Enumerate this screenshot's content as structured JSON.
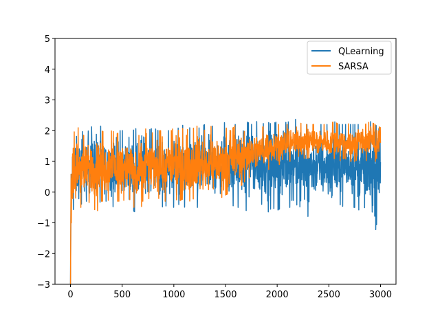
{
  "chart_data": {
    "type": "line",
    "title": "",
    "xlabel": "",
    "ylabel": "",
    "xlim": [
      -150,
      3150
    ],
    "ylim": [
      -3,
      5
    ],
    "xticks": [
      0,
      500,
      1000,
      1500,
      2000,
      2500,
      3000
    ],
    "xtick_labels": [
      "0",
      "500",
      "1000",
      "1500",
      "2000",
      "2500",
      "3000"
    ],
    "yticks": [
      -3,
      -2,
      -1,
      0,
      1,
      2,
      3,
      4,
      5
    ],
    "ytick_labels": [
      "−3",
      "−2",
      "−1",
      "0",
      "1",
      "2",
      "3",
      "4",
      "5"
    ],
    "grid": false,
    "legend_position": "upper right",
    "x_envelope": [
      0,
      10,
      30,
      60,
      100,
      150,
      200,
      250,
      300,
      350,
      400,
      450,
      500,
      550,
      600,
      650,
      700,
      750,
      800,
      850,
      900,
      950,
      1000,
      1050,
      1100,
      1150,
      1200,
      1250,
      1300,
      1350,
      1400,
      1450,
      1500,
      1550,
      1600,
      1650,
      1700,
      1750,
      1800,
      1850,
      1900,
      1950,
      2000,
      2050,
      2100,
      2150,
      2200,
      2250,
      2300,
      2350,
      2400,
      2450,
      2500,
      2550,
      2600,
      2650,
      2700,
      2750,
      2800,
      2850,
      2900,
      2950,
      3000
    ],
    "series": [
      {
        "name": "QLearning",
        "color": "#1f77b4",
        "note": "noisy per-episode values; min/max envelope estimated per ~50-episode window",
        "max": [
          0.7,
          1.9,
          1.9,
          2.2,
          2.0,
          1.9,
          2.1,
          2.4,
          2.1,
          2.0,
          2.1,
          2.0,
          2.0,
          2.1,
          2.0,
          2.1,
          2.4,
          2.0,
          2.1,
          2.0,
          2.1,
          2.0,
          2.0,
          2.1,
          2.2,
          2.1,
          2.0,
          2.1,
          2.2,
          2.1,
          2.2,
          2.1,
          2.3,
          2.2,
          2.2,
          2.5,
          2.3,
          2.2,
          2.3,
          2.2,
          2.3,
          2.2,
          2.3,
          2.2,
          2.3,
          2.2,
          2.5,
          2.2,
          2.2,
          2.3,
          2.2,
          2.2,
          2.2,
          2.3,
          2.2,
          2.2,
          2.2,
          2.2,
          2.2,
          2.2,
          2.3,
          2.2,
          2.0
        ],
        "min": [
          -3.0,
          -1.2,
          -0.5,
          -0.7,
          -0.4,
          -0.3,
          -0.3,
          -0.4,
          -0.3,
          -0.3,
          -0.5,
          -0.4,
          -0.5,
          -0.3,
          -0.6,
          -0.7,
          -0.4,
          -0.3,
          -0.5,
          -0.4,
          -0.5,
          -0.4,
          -0.5,
          -0.4,
          -0.5,
          -0.4,
          -0.5,
          -0.5,
          -0.4,
          -0.4,
          -0.5,
          -0.4,
          -0.5,
          -0.4,
          -0.5,
          -0.5,
          -0.6,
          -0.3,
          -0.5,
          -0.4,
          -0.7,
          -0.5,
          -0.6,
          -0.5,
          -0.5,
          -0.5,
          -0.4,
          -0.6,
          -0.8,
          -0.5,
          -0.5,
          -0.6,
          -0.5,
          -0.5,
          -0.6,
          -0.4,
          -0.5,
          -0.5,
          -0.6,
          -0.5,
          -0.8,
          -1.3,
          -0.3
        ]
      },
      {
        "name": "SARSA",
        "color": "#ff7f0e",
        "note": "noisy per-episode values; min/max envelope estimated per ~50-episode window",
        "max": [
          0.8,
          1.8,
          1.9,
          2.2,
          1.9,
          1.8,
          1.9,
          2.1,
          2.0,
          1.9,
          2.0,
          1.9,
          2.0,
          1.9,
          2.0,
          1.9,
          2.0,
          2.1,
          1.9,
          2.0,
          2.0,
          1.9,
          2.1,
          2.0,
          2.1,
          2.0,
          2.1,
          2.2,
          2.0,
          2.1,
          2.3,
          2.1,
          2.1,
          2.0,
          2.2,
          2.1,
          2.2,
          2.1,
          2.2,
          2.1,
          2.2,
          2.2,
          2.2,
          2.2,
          2.2,
          2.2,
          2.3,
          2.2,
          2.2,
          2.2,
          2.3,
          2.2,
          2.2,
          2.3,
          2.2,
          2.3,
          2.2,
          2.2,
          2.3,
          2.2,
          2.3,
          2.2,
          2.1
        ],
        "min": [
          -3.0,
          -1.1,
          -0.8,
          -0.7,
          -0.5,
          -0.4,
          -0.3,
          -0.7,
          -0.3,
          -0.3,
          -0.2,
          -0.3,
          -0.3,
          -0.2,
          -0.3,
          -1.0,
          -0.3,
          -0.2,
          -0.3,
          -0.2,
          -0.3,
          -0.3,
          -0.2,
          -0.3,
          -0.2,
          -0.3,
          -0.2,
          -0.3,
          -0.3,
          -0.2,
          -0.3,
          -0.2,
          -0.1,
          0.0,
          0.1,
          0.2,
          0.4,
          0.5,
          0.5,
          0.6,
          0.7,
          0.8,
          0.9,
          0.9,
          1.0,
          1.0,
          1.0,
          1.1,
          1.1,
          1.1,
          1.0,
          1.1,
          1.0,
          1.1,
          1.0,
          1.1,
          1.0,
          1.0,
          1.1,
          1.0,
          1.1,
          1.0,
          1.4
        ]
      }
    ]
  },
  "legend": {
    "items": [
      {
        "label": "QLearning",
        "color": "#1f77b4"
      },
      {
        "label": "SARSA",
        "color": "#ff7f0e"
      }
    ]
  }
}
